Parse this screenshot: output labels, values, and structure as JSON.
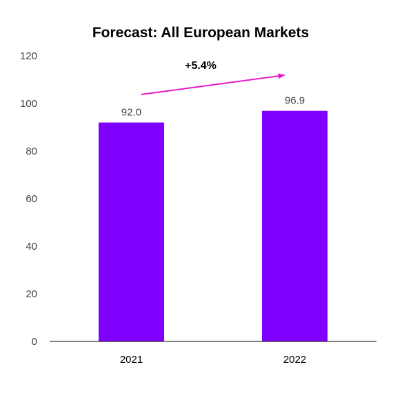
{
  "chart_data": {
    "type": "bar",
    "title": "Forecast: All European Markets",
    "categories": [
      "2021",
      "2022"
    ],
    "values": [
      92.0,
      96.9
    ],
    "value_labels": [
      "92.0",
      "96.9"
    ],
    "xlabel": "",
    "ylabel": "",
    "ylim": [
      0,
      120
    ],
    "yticks": [
      0,
      20,
      40,
      60,
      80,
      100,
      120
    ],
    "grid": false,
    "legend": "none",
    "annotation": {
      "text": "+5.4%",
      "type": "growth-arrow"
    },
    "colors": {
      "bar": "#8000ff",
      "arrow": "#e619c8",
      "axis": "#000000"
    }
  }
}
